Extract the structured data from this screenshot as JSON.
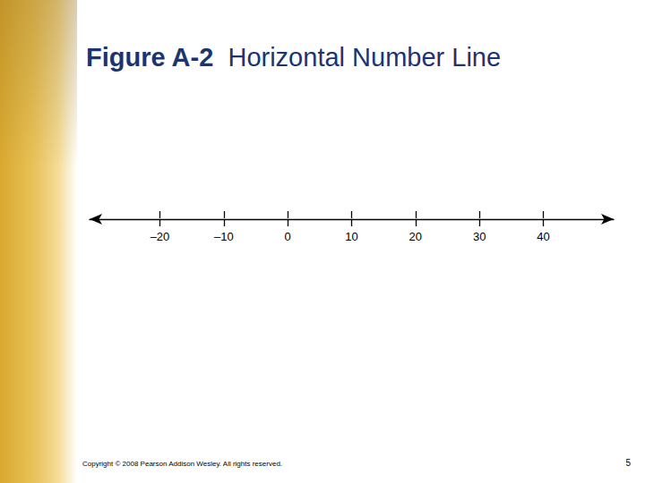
{
  "chart_data": {
    "type": "number_line",
    "title": "Figure A-2",
    "subtitle": "Horizontal Number Line",
    "xlim": [
      -31,
      51
    ],
    "xticks": [
      {
        "value": -20,
        "label": "–20"
      },
      {
        "value": -10,
        "label": "–10"
      },
      0,
      10,
      20,
      30,
      40
    ]
  },
  "footer": {
    "copyright": "Copyright © 2008 Pearson Addison Wesley. All rights reserved.",
    "page": 5
  }
}
